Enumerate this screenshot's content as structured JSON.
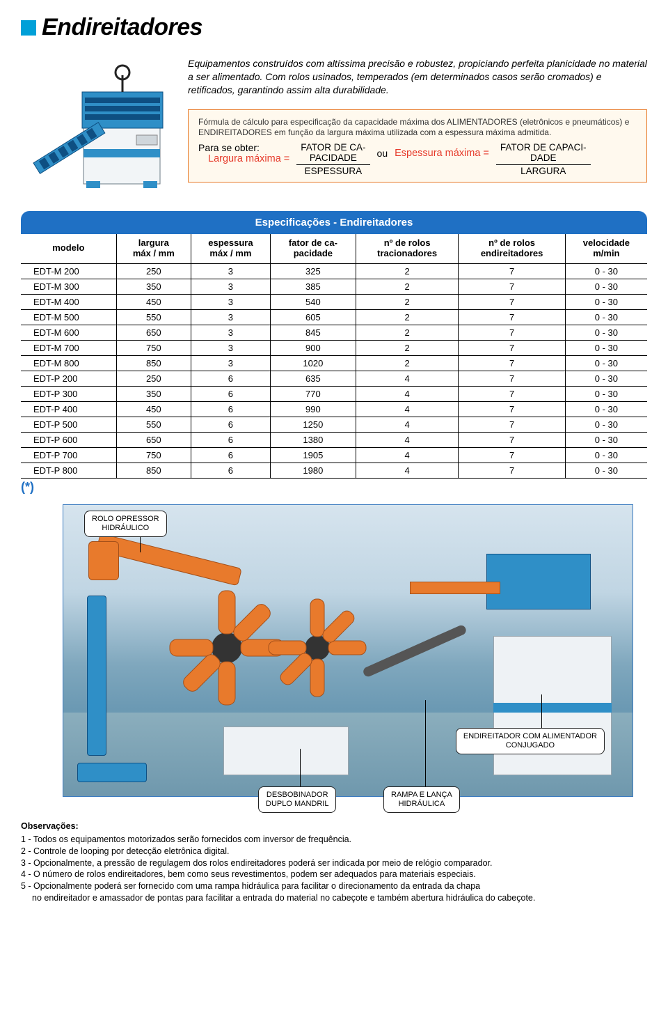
{
  "title": "Endireitadores",
  "title_square_color": "#00a0d8",
  "intro": "Equipamentos construídos com altíssima precisão e robustez, propiciando perfeita planicidade no material a ser alimentado. Com rolos usinados, temperados (em determinados casos serão cromados) e retificados, garantindo assim alta durabilidade.",
  "formula": {
    "desc": "Fórmula de cálculo para especificação da capacidade máxima dos ALIMENTADORES (eletrônicos e pneumáticos) e ENDIREITADORES em função da largura máxima utilizada com a espessura máxima admitida.",
    "para_label": "Para se obter:",
    "left_red": "Largura máxima =",
    "left_top": "FATOR DE CA-\nPACIDADE",
    "left_bot": "ESPESSURA",
    "ou": "ou",
    "right_red": "Espessura máxima =",
    "right_top": "FATOR DE CAPACI-\nDADE",
    "right_bot": "LARGURA",
    "border_color": "#e87b2a",
    "bg_color": "#fff9ee",
    "red": "#e63a2a"
  },
  "spec_table": {
    "header": "Especificações - Endireitadores",
    "header_bg": "#1f70c4",
    "columns": [
      "modelo",
      "largura\nmáx / mm",
      "espessura\nmáx / mm",
      "fator de ca-\npacidade",
      "nº de rolos\ntracionadores",
      "nº de rolos\nendireitadores",
      "velocidade\nm/min"
    ],
    "rows": [
      [
        "EDT-M 200",
        "250",
        "3",
        "325",
        "2",
        "7",
        "0 - 30"
      ],
      [
        "EDT-M 300",
        "350",
        "3",
        "385",
        "2",
        "7",
        "0 - 30"
      ],
      [
        "EDT-M 400",
        "450",
        "3",
        "540",
        "2",
        "7",
        "0 - 30"
      ],
      [
        "EDT-M 500",
        "550",
        "3",
        "605",
        "2",
        "7",
        "0 - 30"
      ],
      [
        "EDT-M 600",
        "650",
        "3",
        "845",
        "2",
        "7",
        "0 - 30"
      ],
      [
        "EDT-M 700",
        "750",
        "3",
        "900",
        "2",
        "7",
        "0 - 30"
      ],
      [
        "EDT-M 800",
        "850",
        "3",
        "1020",
        "2",
        "7",
        "0 - 30"
      ],
      [
        "EDT-P 200",
        "250",
        "6",
        "635",
        "4",
        "7",
        "0 - 30"
      ],
      [
        "EDT-P 300",
        "350",
        "6",
        "770",
        "4",
        "7",
        "0 - 30"
      ],
      [
        "EDT-P 400",
        "450",
        "6",
        "990",
        "4",
        "7",
        "0 - 30"
      ],
      [
        "EDT-P 500",
        "550",
        "6",
        "1250",
        "4",
        "7",
        "0 - 30"
      ],
      [
        "EDT-P 600",
        "650",
        "6",
        "1380",
        "4",
        "7",
        "0 - 30"
      ],
      [
        "EDT-P 700",
        "750",
        "6",
        "1905",
        "4",
        "7",
        "0 - 30"
      ],
      [
        "EDT-P 800",
        "850",
        "6",
        "1980",
        "4",
        "7",
        "0 - 30"
      ]
    ],
    "asterisk": "(*)"
  },
  "diagram": {
    "callouts": {
      "top_left": "ROLO OPRESSOR\nHIDRÁULICO",
      "right": "ENDIREITADOR COM ALIMENTADOR\nCONJUGADO",
      "bottom_left": "DESBOBINADOR\nDUPLO MANDRIL",
      "bottom_right": "RAMPA E LANÇA\nHIDRÁULICA"
    },
    "colors": {
      "orange": "#e87a2c",
      "blue": "#2f8fc7",
      "darkblue": "#0e4f82",
      "grey": "#c8ccd0",
      "cabinet": "#eef2f5",
      "floor": "#7ba8ba"
    }
  },
  "observations": {
    "title": "Observações:",
    "items": [
      "1 - Todos os equipamentos motorizados serão fornecidos com inversor de frequência.",
      "2 - Controle de looping por detecção eletrônica digital.",
      "3 - Opcionalmente, a pressão de regulagem dos rolos endireitadores poderá ser indicada por meio de relógio comparador.",
      "4 - O número de rolos endireitadores, bem como seus revestimentos, podem ser adequados para materiais especiais.",
      "5 - Opcionalmente poderá ser fornecido com uma rampa hidráulica para facilitar o direcionamento da entrada da chapa"
    ],
    "indent": "no endireitador e amassador de pontas para facilitar a entrada do material no cabeçote e também abertura hidráulica do cabeçote."
  }
}
